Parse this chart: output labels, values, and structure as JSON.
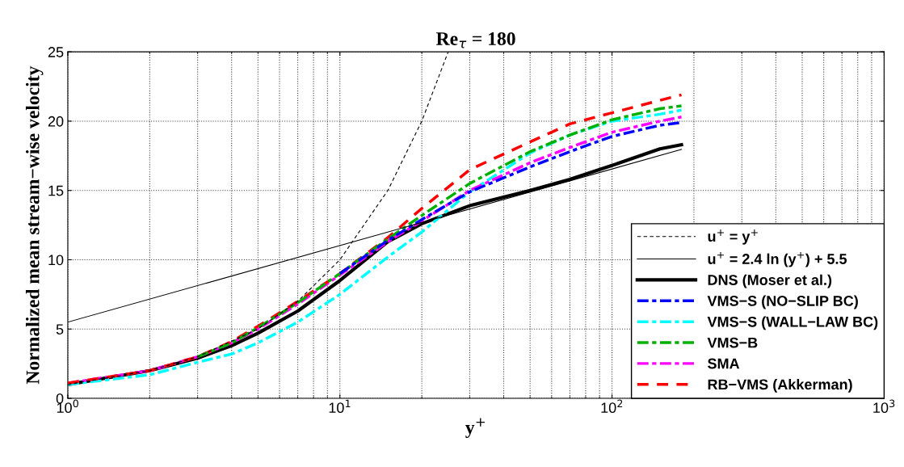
{
  "chart_data": {
    "type": "line",
    "title": "Re$_{τ}$ = 180",
    "xlabel": "y$^{+}$",
    "ylabel": "Normalized mean stream−wise velocity",
    "log": "x",
    "xlim": [
      1,
      1000
    ],
    "xticks": [
      {
        "value": 1,
        "label": "10$^{0}$"
      },
      {
        "value": 10,
        "label": "10$^{1}$"
      },
      {
        "value": 100,
        "label": "10$^{2}$"
      },
      {
        "value": 1000,
        "label": "10$^{3}$"
      }
    ],
    "ylim": [
      0,
      25
    ],
    "yticks": [
      0,
      5,
      10,
      15,
      20,
      25
    ],
    "grid": true,
    "legend": "bottom right",
    "series": [
      {
        "name": "u$^{+}$ = y$^{+}$",
        "color": "#000000",
        "line_style": "dashed",
        "x": [
          1,
          2,
          3,
          5,
          7,
          10,
          15,
          20,
          25
        ],
        "values": [
          1,
          2,
          3,
          5,
          7,
          10,
          15,
          20,
          25
        ]
      },
      {
        "name": "u$^{+}$ = 2.4 ln (y$^{+}$) + 5.5",
        "color": "#000000",
        "line_style": "solid",
        "x": [
          1,
          180
        ],
        "values": [
          5.5,
          17.96
        ]
      },
      {
        "name": "DNS (Moser et al.)",
        "color": "#000000",
        "line_style": "solid",
        "x": [
          1,
          2,
          3,
          4,
          5,
          7,
          10,
          15,
          20,
          30,
          50,
          70,
          100,
          150,
          180
        ],
        "values": [
          1.0,
          2.0,
          2.9,
          3.8,
          4.7,
          6.3,
          8.5,
          11.3,
          12.6,
          13.9,
          15.0,
          15.8,
          16.8,
          18.0,
          18.3
        ]
      },
      {
        "name": "VMS−S (NO−SLIP BC)",
        "color": "#0000ff",
        "line_style": "dashdot",
        "x": [
          10,
          15,
          20,
          30,
          50,
          70,
          100,
          150,
          180
        ],
        "values": [
          9.0,
          11.4,
          12.9,
          14.9,
          16.7,
          17.8,
          18.9,
          19.7,
          19.9
        ]
      },
      {
        "name": "VMS−S (WALL−LAW BC)",
        "color": "#00ffff",
        "line_style": "dashdot",
        "x": [
          1,
          2,
          3,
          4,
          5,
          7,
          10,
          15,
          20,
          30,
          50,
          70,
          100,
          150,
          180
        ],
        "values": [
          1.0,
          1.7,
          2.6,
          3.2,
          4.0,
          5.5,
          7.5,
          10.2,
          12.0,
          14.9,
          17.7,
          19.0,
          20.0,
          20.5,
          20.8
        ]
      },
      {
        "name": "VMS−B",
        "color": "#00b000",
        "line_style": "dashdot",
        "x": [
          3,
          4,
          5,
          7,
          10,
          15,
          20,
          30,
          50,
          70,
          100,
          150,
          180
        ],
        "values": [
          3.0,
          4.0,
          5.1,
          6.9,
          9.0,
          11.5,
          13.2,
          15.5,
          17.8,
          19.0,
          20.1,
          20.9,
          21.1
        ]
      },
      {
        "name": "SMA",
        "color": "#ff00ff",
        "line_style": "dashdot",
        "x": [
          1,
          2,
          3,
          4,
          5,
          7,
          10,
          15,
          20,
          30,
          50,
          70,
          100,
          150,
          180
        ],
        "values": [
          1.1,
          2.0,
          3.0,
          4.0,
          5.0,
          6.8,
          8.9,
          11.3,
          12.8,
          15.0,
          17.0,
          18.1,
          19.2,
          20.0,
          20.3
        ]
      },
      {
        "name": "RB−VMS (Akkerman)",
        "color": "#ff0000",
        "line_style": "dashed",
        "x": [
          1,
          2,
          3,
          4,
          5,
          7,
          10,
          15,
          20,
          30,
          50,
          70,
          100,
          150,
          180
        ],
        "values": [
          1.1,
          2.0,
          3.0,
          4.1,
          5.2,
          7.0,
          9.0,
          11.6,
          13.7,
          16.5,
          18.5,
          19.8,
          20.6,
          21.5,
          21.9
        ]
      }
    ]
  }
}
